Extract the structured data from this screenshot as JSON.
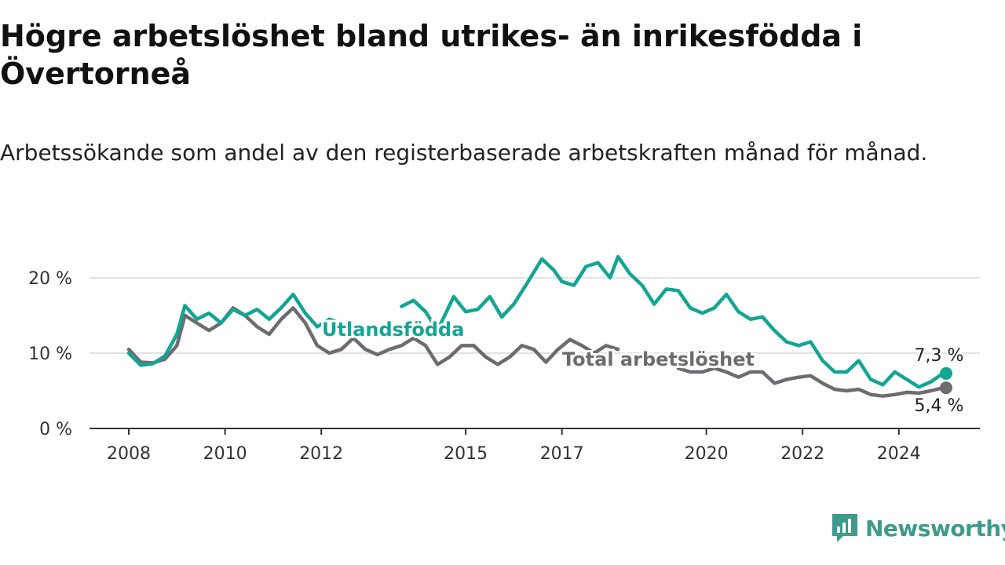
{
  "header": {
    "title": "Högre arbetslöshet bland utrikes- än inrikesfödda i Övertorneå",
    "subtitle": "Arbetssökande som andel av den registerbaserade arbetskraften månad för månad."
  },
  "brand": {
    "name": "Newsworthy",
    "icon": "newsworthy-logo-icon",
    "color": "#3d9a8c"
  },
  "chart_data": {
    "type": "line",
    "title": "Högre arbetslöshet bland utrikes- än inrikesfödda i Övertorneå",
    "subtitle": "Arbetssökande som andel av den registerbaserade arbetskraften månad för månad.",
    "xlabel": "",
    "ylabel": "",
    "xlim": [
      "2008-01",
      "2025-08"
    ],
    "ylim": [
      0,
      20
    ],
    "yticks": [
      0,
      10,
      20
    ],
    "ytick_labels": [
      "0 %",
      "10 %",
      "20 %"
    ],
    "xticks": [
      "2008",
      "2010",
      "2012",
      "2015",
      "2017",
      "2020",
      "2022",
      "2024"
    ],
    "grid": true,
    "legend": "inline labels",
    "series": [
      {
        "name": "Utlandsfödda",
        "color": "#12a594",
        "end_label": "7,3 %",
        "points": [
          [
            "2008-01",
            10.0
          ],
          [
            "2008-04",
            8.4
          ],
          [
            "2008-07",
            8.6
          ],
          [
            "2008-10",
            9.6
          ],
          [
            "2009-01",
            12.5
          ],
          [
            "2009-03",
            16.3
          ],
          [
            "2009-06",
            14.5
          ],
          [
            "2009-09",
            15.3
          ],
          [
            "2009-12",
            14.0
          ],
          [
            "2010-03",
            15.8
          ],
          [
            "2010-06",
            15.0
          ],
          [
            "2010-09",
            15.8
          ],
          [
            "2010-12",
            14.5
          ],
          [
            "2011-03",
            16.0
          ],
          [
            "2011-06",
            17.8
          ],
          [
            "2011-09",
            15.3
          ],
          [
            "2011-12",
            13.5
          ],
          [
            "2012-03",
            14.5
          ],
          [
            "2012-06",
            14.0
          ],
          [
            "2013-09",
            16.2
          ],
          [
            "2013-12",
            17.0
          ],
          [
            "2014-03",
            15.5
          ],
          [
            "2014-06",
            13.0
          ],
          [
            "2014-10",
            17.5
          ],
          [
            "2015-01",
            15.5
          ],
          [
            "2015-04",
            15.8
          ],
          [
            "2015-07",
            17.5
          ],
          [
            "2015-10",
            14.8
          ],
          [
            "2016-01",
            16.5
          ],
          [
            "2016-04",
            19.0
          ],
          [
            "2016-08",
            22.5
          ],
          [
            "2016-11",
            21.0
          ],
          [
            "2017-01",
            19.5
          ],
          [
            "2017-04",
            19.0
          ],
          [
            "2017-07",
            21.5
          ],
          [
            "2017-10",
            22.0
          ],
          [
            "2018-01",
            20.0
          ],
          [
            "2018-03",
            22.8
          ],
          [
            "2018-06",
            20.5
          ],
          [
            "2018-09",
            19.0
          ],
          [
            "2018-12",
            16.5
          ],
          [
            "2019-03",
            18.5
          ],
          [
            "2019-06",
            18.3
          ],
          [
            "2019-09",
            16.0
          ],
          [
            "2019-12",
            15.3
          ],
          [
            "2020-03",
            16.0
          ],
          [
            "2020-06",
            17.8
          ],
          [
            "2020-09",
            15.5
          ],
          [
            "2020-12",
            14.5
          ],
          [
            "2021-03",
            14.8
          ],
          [
            "2021-06",
            13.0
          ],
          [
            "2021-09",
            11.5
          ],
          [
            "2021-12",
            11.0
          ],
          [
            "2022-03",
            11.5
          ],
          [
            "2022-06",
            9.0
          ],
          [
            "2022-09",
            7.5
          ],
          [
            "2022-12",
            7.5
          ],
          [
            "2023-03",
            9.0
          ],
          [
            "2023-06",
            6.5
          ],
          [
            "2023-09",
            5.8
          ],
          [
            "2023-12",
            7.5
          ],
          [
            "2024-03",
            6.5
          ],
          [
            "2024-06",
            5.5
          ],
          [
            "2024-09",
            6.2
          ],
          [
            "2024-12",
            7.3
          ]
        ]
      },
      {
        "name": "Total arbetslöshet",
        "color": "#6e6b70",
        "end_label": "5,4 %",
        "points": [
          [
            "2008-01",
            10.5
          ],
          [
            "2008-04",
            8.8
          ],
          [
            "2008-07",
            8.7
          ],
          [
            "2008-10",
            9.2
          ],
          [
            "2009-01",
            11.0
          ],
          [
            "2009-03",
            15.0
          ],
          [
            "2009-06",
            14.0
          ],
          [
            "2009-09",
            13.0
          ],
          [
            "2009-12",
            14.0
          ],
          [
            "2010-03",
            16.0
          ],
          [
            "2010-06",
            15.0
          ],
          [
            "2010-09",
            13.5
          ],
          [
            "2010-12",
            12.5
          ],
          [
            "2011-03",
            14.5
          ],
          [
            "2011-06",
            16.0
          ],
          [
            "2011-09",
            14.0
          ],
          [
            "2011-12",
            11.0
          ],
          [
            "2012-03",
            10.0
          ],
          [
            "2012-06",
            10.5
          ],
          [
            "2012-09",
            12.0
          ],
          [
            "2012-12",
            10.5
          ],
          [
            "2013-03",
            9.8
          ],
          [
            "2013-06",
            10.5
          ],
          [
            "2013-09",
            11.0
          ],
          [
            "2013-12",
            12.0
          ],
          [
            "2014-03",
            11.0
          ],
          [
            "2014-06",
            8.5
          ],
          [
            "2014-09",
            9.5
          ],
          [
            "2014-12",
            11.0
          ],
          [
            "2015-03",
            11.0
          ],
          [
            "2015-06",
            9.5
          ],
          [
            "2015-09",
            8.5
          ],
          [
            "2015-12",
            9.5
          ],
          [
            "2016-03",
            11.0
          ],
          [
            "2016-06",
            10.5
          ],
          [
            "2016-09",
            8.8
          ],
          [
            "2016-12",
            10.5
          ],
          [
            "2017-03",
            11.8
          ],
          [
            "2017-06",
            11.0
          ],
          [
            "2017-09",
            10.0
          ],
          [
            "2017-12",
            11.0
          ],
          [
            "2018-03",
            10.5
          ],
          [
            "2019-06",
            8.0
          ],
          [
            "2019-09",
            7.5
          ],
          [
            "2019-12",
            7.5
          ],
          [
            "2020-03",
            8.0
          ],
          [
            "2020-06",
            7.5
          ],
          [
            "2020-09",
            6.8
          ],
          [
            "2020-12",
            7.5
          ],
          [
            "2021-03",
            7.5
          ],
          [
            "2021-06",
            6.0
          ],
          [
            "2021-09",
            6.5
          ],
          [
            "2021-12",
            6.8
          ],
          [
            "2022-03",
            7.0
          ],
          [
            "2022-06",
            6.0
          ],
          [
            "2022-09",
            5.2
          ],
          [
            "2022-12",
            5.0
          ],
          [
            "2023-03",
            5.2
          ],
          [
            "2023-06",
            4.5
          ],
          [
            "2023-09",
            4.3
          ],
          [
            "2023-12",
            4.5
          ],
          [
            "2024-03",
            4.8
          ],
          [
            "2024-06",
            4.7
          ],
          [
            "2024-09",
            5.0
          ],
          [
            "2024-12",
            5.4
          ]
        ]
      }
    ]
  }
}
